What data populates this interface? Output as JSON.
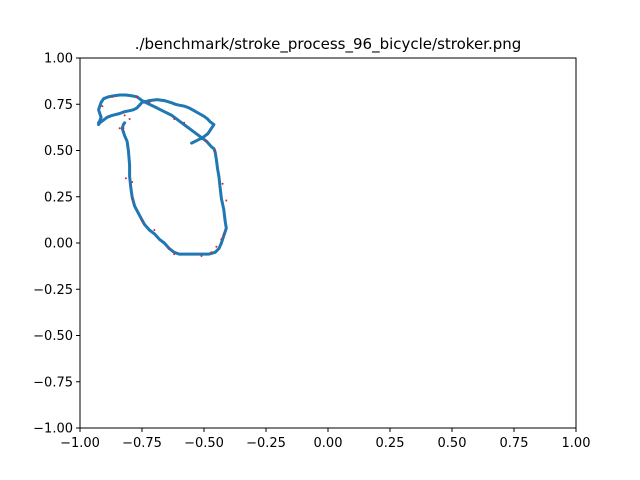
{
  "chart_data": {
    "type": "line",
    "title": "./benchmark/stroke_process_96_bicycle/stroker.png",
    "xlabel": "",
    "ylabel": "",
    "xlim": [
      -1.0,
      1.0
    ],
    "ylim": [
      -1.0,
      1.0
    ],
    "xticks": [
      "−1.00",
      "−0.75",
      "−0.50",
      "−0.25",
      "0.00",
      "0.25",
      "0.50",
      "0.75",
      "1.00"
    ],
    "yticks": [
      "−1.00",
      "−0.75",
      "−0.50",
      "−0.25",
      "0.00",
      "0.25",
      "0.50",
      "0.75",
      "1.00"
    ],
    "xtick_values": [
      -1.0,
      -0.75,
      -0.5,
      -0.25,
      0.0,
      0.25,
      0.5,
      0.75,
      1.0
    ],
    "ytick_values": [
      -1.0,
      -0.75,
      -0.5,
      -0.25,
      0.0,
      0.25,
      0.5,
      0.75,
      1.0
    ],
    "grid": false,
    "series": [
      {
        "color": "#1f77b4",
        "x": [
          -0.82,
          -0.825,
          -0.83,
          -0.82,
          -0.81,
          -0.805,
          -0.8,
          -0.8,
          -0.795,
          -0.79,
          -0.78,
          -0.76,
          -0.74,
          -0.72,
          -0.7,
          -0.68,
          -0.66,
          -0.64,
          -0.62,
          -0.6,
          -0.57,
          -0.54,
          -0.51,
          -0.48,
          -0.455,
          -0.44,
          -0.43,
          -0.425,
          -0.42,
          -0.415,
          -0.41,
          -0.415,
          -0.42,
          -0.43,
          -0.435,
          -0.44,
          -0.445,
          -0.45,
          -0.455,
          -0.46,
          -0.47,
          -0.49,
          -0.51,
          -0.53,
          -0.55,
          -0.57,
          -0.59,
          -0.61,
          -0.63,
          -0.66,
          -0.69,
          -0.72,
          -0.75,
          -0.77,
          -0.79,
          -0.815,
          -0.84,
          -0.865,
          -0.885,
          -0.905,
          -0.915,
          -0.92,
          -0.925,
          -0.92,
          -0.915,
          -0.92,
          -0.925,
          -0.925,
          -0.92,
          -0.91,
          -0.89,
          -0.87,
          -0.84,
          -0.82,
          -0.8,
          -0.785,
          -0.77,
          -0.76,
          -0.75,
          -0.72,
          -0.69,
          -0.66,
          -0.635,
          -0.615,
          -0.6,
          -0.58,
          -0.56,
          -0.54,
          -0.52,
          -0.5,
          -0.485,
          -0.475,
          -0.465,
          -0.46,
          -0.465,
          -0.47,
          -0.475,
          -0.48,
          -0.485,
          -0.495,
          -0.505,
          -0.52,
          -0.535,
          -0.55
        ],
        "y": [
          0.65,
          0.64,
          0.62,
          0.58,
          0.55,
          0.5,
          0.42,
          0.36,
          0.3,
          0.25,
          0.2,
          0.15,
          0.1,
          0.07,
          0.05,
          0.02,
          0.0,
          -0.03,
          -0.05,
          -0.06,
          -0.06,
          -0.06,
          -0.06,
          -0.06,
          -0.05,
          -0.03,
          0.0,
          0.02,
          0.04,
          0.06,
          0.08,
          0.12,
          0.18,
          0.24,
          0.3,
          0.36,
          0.4,
          0.45,
          0.49,
          0.51,
          0.52,
          0.55,
          0.57,
          0.59,
          0.61,
          0.63,
          0.65,
          0.67,
          0.69,
          0.71,
          0.73,
          0.75,
          0.77,
          0.79,
          0.795,
          0.8,
          0.8,
          0.795,
          0.79,
          0.78,
          0.76,
          0.74,
          0.72,
          0.7,
          0.68,
          0.66,
          0.65,
          0.64,
          0.65,
          0.66,
          0.68,
          0.69,
          0.7,
          0.71,
          0.715,
          0.72,
          0.73,
          0.745,
          0.76,
          0.77,
          0.775,
          0.77,
          0.76,
          0.75,
          0.745,
          0.74,
          0.73,
          0.715,
          0.7,
          0.685,
          0.67,
          0.655,
          0.645,
          0.64,
          0.63,
          0.62,
          0.61,
          0.6,
          0.59,
          0.58,
          0.57,
          0.56,
          0.55,
          0.54
        ]
      }
    ],
    "markers": {
      "color": "#d62728",
      "x": [
        -0.91,
        -0.87,
        -0.82,
        -0.825,
        -0.8,
        -0.84,
        -0.815,
        -0.79,
        -0.79,
        -0.75,
        -0.7,
        -0.64,
        -0.62,
        -0.51,
        -0.47,
        -0.45,
        -0.43,
        -0.42,
        -0.41,
        -0.425,
        -0.455,
        -0.49,
        -0.58,
        -0.62,
        -0.72,
        -0.77
      ],
      "y": [
        0.74,
        0.79,
        0.69,
        0.62,
        0.67,
        0.62,
        0.35,
        0.33,
        0.24,
        0.12,
        0.07,
        -0.03,
        -0.06,
        -0.07,
        -0.05,
        -0.02,
        0.02,
        0.05,
        0.23,
        0.32,
        0.5,
        0.55,
        0.65,
        0.67,
        0.76,
        0.79
      ]
    }
  }
}
